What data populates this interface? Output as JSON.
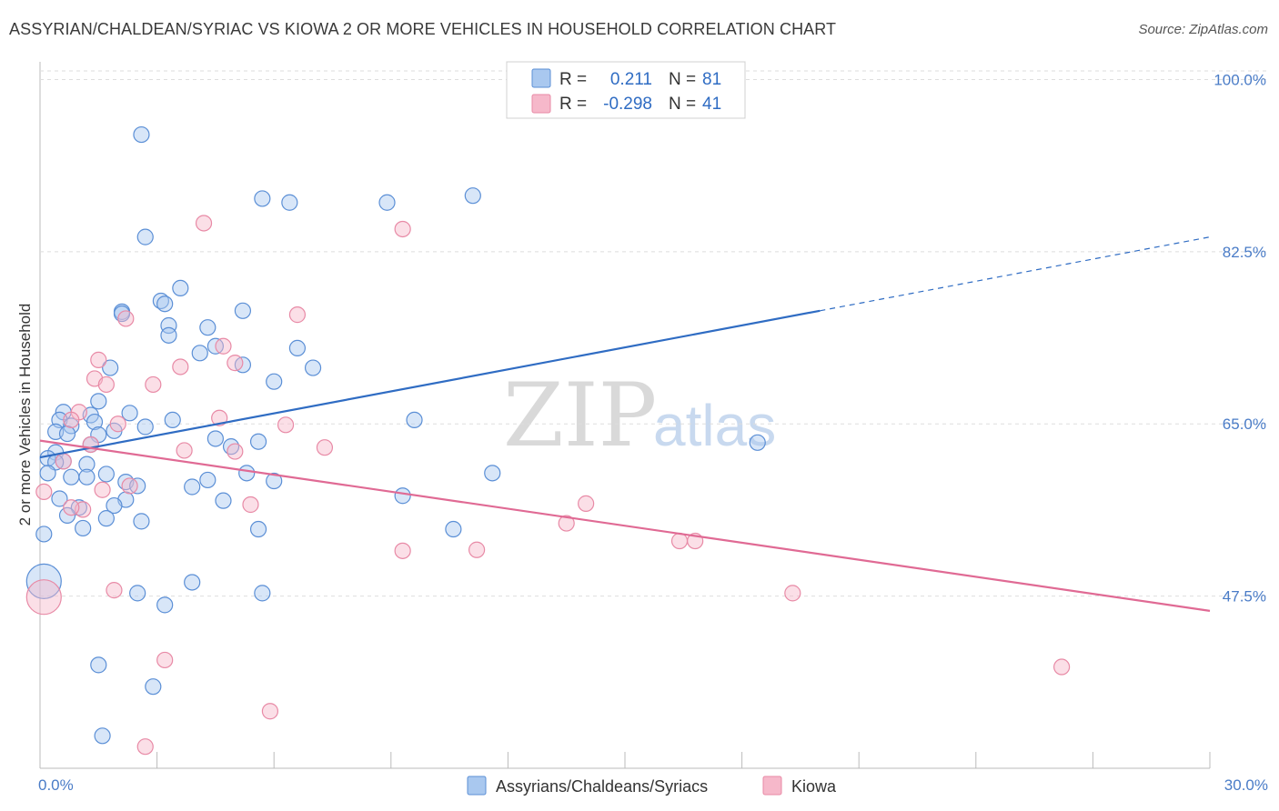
{
  "header": {
    "title": "ASSYRIAN/CHALDEAN/SYRIAC VS KIOWA 2 OR MORE VEHICLES IN HOUSEHOLD CORRELATION CHART",
    "source": "Source: ZipAtlas.com"
  },
  "legend_box": {
    "rows": [
      {
        "r_label": "R =",
        "r_value": "0.211",
        "n_label": "N =",
        "n_value": "81",
        "color": "#a9c8ef"
      },
      {
        "r_label": "R =",
        "r_value": "-0.298",
        "n_label": "N =",
        "n_value": "41",
        "color": "#f6b8ca"
      }
    ]
  },
  "bottom_legend": [
    {
      "label": "Assyrians/Chaldeans/Syriacs",
      "color": "#a9c8ef"
    },
    {
      "label": "Kiowa",
      "color": "#f6b8ca"
    }
  ],
  "watermark": {
    "zip": "ZIP",
    "atlas": "atlas"
  },
  "chart_data": {
    "type": "scatter",
    "ylabel": "2 or more Vehicles in Household",
    "xlim": [
      0,
      30
    ],
    "ylim": [
      30,
      101.8
    ],
    "y_ticks": [
      {
        "value": 100,
        "label": "100.0%"
      },
      {
        "value": 82.5,
        "label": "82.5%"
      },
      {
        "value": 65,
        "label": "65.0%"
      },
      {
        "value": 47.5,
        "label": "47.5%"
      }
    ],
    "x_ticks": [
      {
        "value": 0,
        "label": "0.0%"
      },
      {
        "value": 30,
        "label": "30.0%"
      }
    ],
    "colors": {
      "blue_fill": "#a9c8ef",
      "blue_stroke": "#5b8fd6",
      "blue_line": "#2f6cc3",
      "pink_fill": "#f6b8ca",
      "pink_stroke": "#e88aa6",
      "pink_line": "#e06a94"
    },
    "series": [
      {
        "name": "Assyrians/Chaldeans/Syriacs",
        "trend": {
          "x0": 0,
          "y0": 61.6,
          "x1": 20,
          "y1": 76.5,
          "dash_x1": 30,
          "dash_y1": 84.0
        },
        "points": [
          [
            2.6,
            94.4
          ],
          [
            2.7,
            84.0
          ],
          [
            5.7,
            87.9
          ],
          [
            6.4,
            87.5
          ],
          [
            8.9,
            87.5
          ],
          [
            11.1,
            88.2
          ],
          [
            3.6,
            78.8
          ],
          [
            3.1,
            77.5
          ],
          [
            3.2,
            77.2
          ],
          [
            2.1,
            76.4
          ],
          [
            2.1,
            76.2
          ],
          [
            5.2,
            76.5
          ],
          [
            3.3,
            75.0
          ],
          [
            4.3,
            74.8
          ],
          [
            3.3,
            74.0
          ],
          [
            4.5,
            72.9
          ],
          [
            6.6,
            72.7
          ],
          [
            4.1,
            72.2
          ],
          [
            5.2,
            71.0
          ],
          [
            7.0,
            70.7
          ],
          [
            1.8,
            70.7
          ],
          [
            6.0,
            69.3
          ],
          [
            1.5,
            67.3
          ],
          [
            0.6,
            66.2
          ],
          [
            2.3,
            66.1
          ],
          [
            1.3,
            65.9
          ],
          [
            1.4,
            65.2
          ],
          [
            3.4,
            65.4
          ],
          [
            9.6,
            65.4
          ],
          [
            0.5,
            65.4
          ],
          [
            0.8,
            64.8
          ],
          [
            2.7,
            64.7
          ],
          [
            0.4,
            64.2
          ],
          [
            1.9,
            64.3
          ],
          [
            0.7,
            64.0
          ],
          [
            1.5,
            63.9
          ],
          [
            4.5,
            63.5
          ],
          [
            5.6,
            63.2
          ],
          [
            18.4,
            63.1
          ],
          [
            1.3,
            62.9
          ],
          [
            4.9,
            62.7
          ],
          [
            0.4,
            62.1
          ],
          [
            0.2,
            61.5
          ],
          [
            0.6,
            61.2
          ],
          [
            0.4,
            61.1
          ],
          [
            1.2,
            60.9
          ],
          [
            0.2,
            60.0
          ],
          [
            5.3,
            60.0
          ],
          [
            11.6,
            60.0
          ],
          [
            1.7,
            59.9
          ],
          [
            0.8,
            59.6
          ],
          [
            1.2,
            59.6
          ],
          [
            4.3,
            59.3
          ],
          [
            6.0,
            59.2
          ],
          [
            2.2,
            59.1
          ],
          [
            2.5,
            58.7
          ],
          [
            3.9,
            58.6
          ],
          [
            9.3,
            57.7
          ],
          [
            0.5,
            57.4
          ],
          [
            4.7,
            57.2
          ],
          [
            2.2,
            57.3
          ],
          [
            1.9,
            56.7
          ],
          [
            1.0,
            56.5
          ],
          [
            0.7,
            55.7
          ],
          [
            1.7,
            55.4
          ],
          [
            2.6,
            55.1
          ],
          [
            1.1,
            54.4
          ],
          [
            5.6,
            54.3
          ],
          [
            10.6,
            54.3
          ],
          [
            0.1,
            53.8
          ],
          [
            3.9,
            48.9
          ],
          [
            2.5,
            47.8
          ],
          [
            5.7,
            47.8
          ],
          [
            3.2,
            46.6
          ],
          [
            1.5,
            40.5
          ],
          [
            2.9,
            38.3
          ],
          [
            1.6,
            33.3
          ]
        ],
        "large_points": [
          [
            0.1,
            49.0
          ]
        ]
      },
      {
        "name": "Kiowa",
        "trend": {
          "x0": 0,
          "y0": 63.3,
          "x1": 30,
          "y1": 46.0
        },
        "points": [
          [
            4.2,
            85.4
          ],
          [
            9.3,
            84.8
          ],
          [
            6.6,
            76.1
          ],
          [
            2.2,
            75.7
          ],
          [
            1.5,
            71.5
          ],
          [
            3.6,
            70.8
          ],
          [
            4.7,
            72.9
          ],
          [
            5.0,
            71.2
          ],
          [
            1.4,
            69.6
          ],
          [
            1.7,
            69.0
          ],
          [
            2.9,
            69.0
          ],
          [
            1.0,
            66.2
          ],
          [
            4.6,
            65.6
          ],
          [
            2.0,
            65.0
          ],
          [
            0.8,
            65.4
          ],
          [
            6.3,
            64.9
          ],
          [
            7.3,
            62.6
          ],
          [
            3.7,
            62.3
          ],
          [
            5.0,
            62.2
          ],
          [
            1.3,
            62.9
          ],
          [
            0.6,
            61.2
          ],
          [
            2.3,
            58.7
          ],
          [
            1.6,
            58.3
          ],
          [
            0.1,
            58.1
          ],
          [
            14.0,
            56.9
          ],
          [
            5.4,
            56.8
          ],
          [
            1.1,
            56.3
          ],
          [
            0.8,
            56.5
          ],
          [
            13.5,
            54.9
          ],
          [
            16.4,
            53.1
          ],
          [
            16.8,
            53.1
          ],
          [
            9.3,
            52.1
          ],
          [
            11.2,
            52.2
          ],
          [
            1.9,
            48.1
          ],
          [
            19.3,
            47.8
          ],
          [
            3.2,
            41.0
          ],
          [
            26.2,
            40.3
          ],
          [
            5.9,
            35.8
          ],
          [
            2.7,
            32.2
          ]
        ],
        "large_points": [
          [
            0.1,
            47.4
          ]
        ]
      }
    ]
  }
}
